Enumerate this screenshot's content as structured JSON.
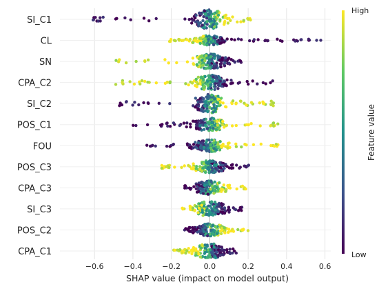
{
  "chart_data": {
    "type": "scatter",
    "subtype": "shap-beeswarm",
    "xlabel": "SHAP value (impact on model output)",
    "xlim": [
      -0.78,
      0.63
    ],
    "xticks": [
      -0.6,
      -0.4,
      -0.2,
      0.0,
      0.2,
      0.4,
      0.6
    ],
    "xtick_labels": [
      "−0.6",
      "−0.4",
      "−0.2",
      "0.0",
      "0.2",
      "0.4",
      "0.6"
    ],
    "grid": true,
    "features": [
      {
        "name": "SI_C1",
        "min": -0.73,
        "max": 0.22,
        "high_side": "positive",
        "spread": 14
      },
      {
        "name": "CL",
        "min": -0.21,
        "max": 0.59,
        "high_side": "negative",
        "spread": 7
      },
      {
        "name": "SN",
        "min": -0.51,
        "max": 0.17,
        "high_side": "negative",
        "spread": 11
      },
      {
        "name": "CPA_C2",
        "min": -0.5,
        "max": 0.33,
        "high_side": "negative",
        "spread": 11
      },
      {
        "name": "SI_C2",
        "min": -0.49,
        "max": 0.36,
        "high_side": "positive",
        "spread": 14
      },
      {
        "name": "POS_C1",
        "min": -0.4,
        "max": 0.37,
        "high_side": "positive",
        "spread": 10
      },
      {
        "name": "FOU",
        "min": -0.34,
        "max": 0.37,
        "high_side": "positive",
        "spread": 9
      },
      {
        "name": "POS_C3",
        "min": -0.25,
        "max": 0.22,
        "high_side": "negative",
        "spread": 9
      },
      {
        "name": "CPA_C3",
        "min": -0.13,
        "max": 0.19,
        "high_side": "positive",
        "spread": 10
      },
      {
        "name": "SI_C3",
        "min": -0.15,
        "max": 0.17,
        "high_side": "negative",
        "spread": 11
      },
      {
        "name": "POS_C2",
        "min": -0.14,
        "max": 0.2,
        "high_side": "positive",
        "spread": 9
      },
      {
        "name": "CPA_C1",
        "min": -0.19,
        "max": 0.14,
        "high_side": "negative",
        "spread": 11
      }
    ],
    "colorbar": {
      "label": "Feature value",
      "high_label": "High",
      "low_label": "Low",
      "colormap": "viridis",
      "colors": [
        "#440154",
        "#3b528b",
        "#21918c",
        "#5ec962",
        "#fde725"
      ]
    }
  }
}
